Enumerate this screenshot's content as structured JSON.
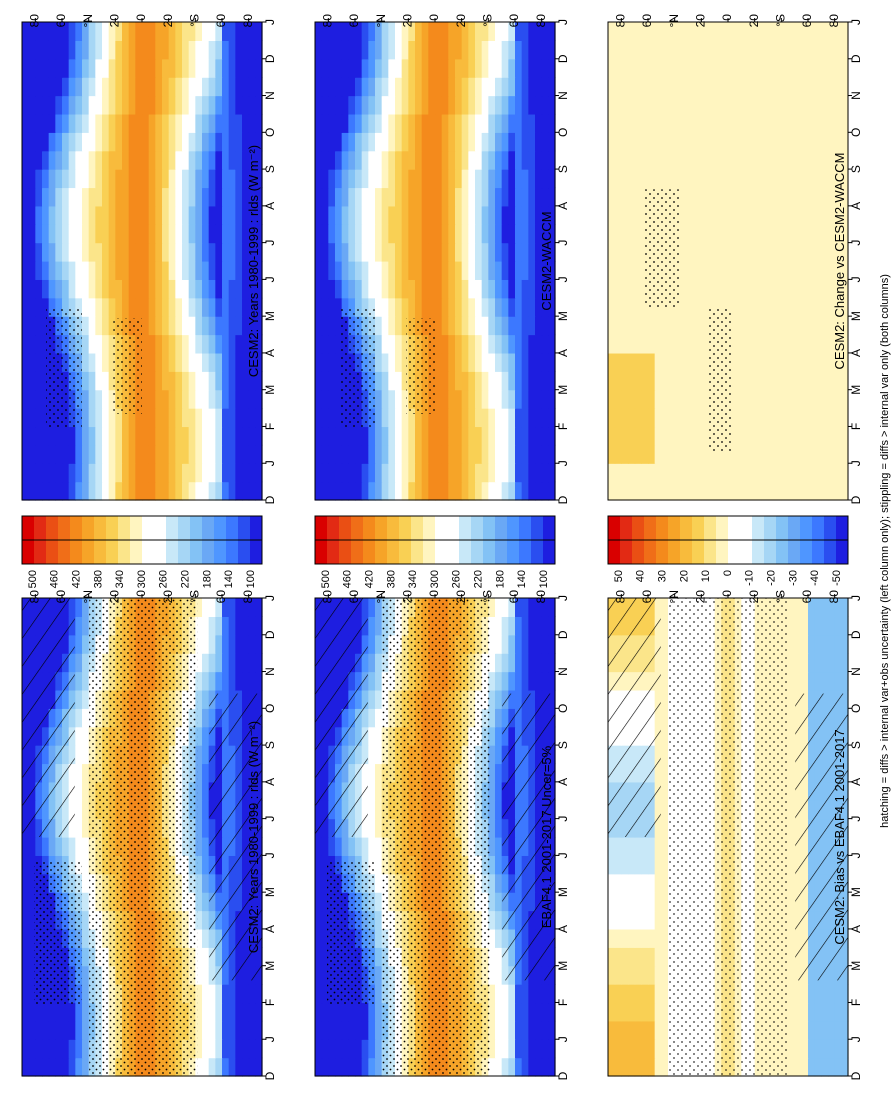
{
  "footnote": "hatching = diffs > internal var+obs uncertainty (left column only); stippling = diffs > internal var only (both columns)",
  "colors": {
    "abs": [
      "#1e1ee0",
      "#2a4ef0",
      "#3c78ff",
      "#4f96ff",
      "#6aa8f5",
      "#83c2f5",
      "#a6d6f5",
      "#c8e8f8",
      "#ffffff",
      "#ffffff",
      "#fff5c0",
      "#fbe58a",
      "#f9d054",
      "#f8bb3c",
      "#f6a428",
      "#f48a1c",
      "#f06e18",
      "#ea4f14",
      "#e22a14",
      "#d90000"
    ],
    "diff": [
      "#1e1ee0",
      "#2a4ef0",
      "#3c78ff",
      "#4f96ff",
      "#6aa8f5",
      "#83c2f5",
      "#a6d6f5",
      "#c8e8f8",
      "#ffffff",
      "#ffffff",
      "#fff5c0",
      "#fbe58a",
      "#f9d054",
      "#f8bb3c",
      "#f6a428",
      "#f48a1c",
      "#f06e18",
      "#ea4f14",
      "#e22a14",
      "#d90000"
    ]
  },
  "axes": {
    "months": [
      "J",
      "F",
      "M",
      "A",
      "M",
      "J",
      "J",
      "A",
      "S",
      "O",
      "N",
      "D",
      "J"
    ],
    "first_month": "D",
    "lat_labels": [
      "80",
      "60",
      "°N",
      "20",
      "0",
      "20",
      "°S",
      "60",
      "80"
    ]
  },
  "chart_data": [
    {
      "id": "p1",
      "type": "heatmap",
      "title": "CESM2: Years 1980-1999 : rlds (W m⁻²)",
      "colorbar": "abs",
      "field": "abs",
      "hatch": true,
      "stipple": "dense",
      "colorbar_ticks": [
        "500",
        "460",
        "420",
        "380",
        "340",
        "300",
        "260",
        "220",
        "180",
        "140",
        "100"
      ],
      "zlim": [
        80,
        520
      ]
    },
    {
      "id": "p2",
      "type": "heatmap",
      "title": "CESM2: Years 1980-1999 : rlds (W m⁻²)",
      "colorbar": "abs",
      "field": "abs",
      "hatch": false,
      "stipple": "sparse",
      "colorbar_ticks": [
        "500",
        "460",
        "420",
        "380",
        "340",
        "300",
        "260",
        "220",
        "180",
        "140",
        "100"
      ],
      "zlim": [
        80,
        520
      ]
    },
    {
      "id": "p3",
      "type": "heatmap",
      "title": "EBAF4.1 2001-2017 Uncer=5%",
      "colorbar": "abs",
      "field": "abs",
      "hatch": true,
      "stipple": "dense",
      "colorbar_ticks": [
        "500",
        "460",
        "420",
        "380",
        "340",
        "300",
        "260",
        "220",
        "180",
        "140",
        "100"
      ],
      "zlim": [
        80,
        520
      ]
    },
    {
      "id": "p4",
      "type": "heatmap",
      "title": "CESM2-WACCM",
      "colorbar": "abs",
      "field": "abs",
      "hatch": false,
      "stipple": "sparse",
      "colorbar_ticks": [
        "500",
        "460",
        "420",
        "380",
        "340",
        "300",
        "260",
        "220",
        "180",
        "140",
        "100"
      ],
      "zlim": [
        80,
        520
      ]
    },
    {
      "id": "p5",
      "type": "heatmap",
      "title": "CESM2: Bias vs EBAF4.1 2001-2017",
      "colorbar": "diff",
      "field": "bias",
      "hatch": true,
      "stipple": "medium",
      "colorbar_ticks": [
        "50",
        "40",
        "30",
        "20",
        "10",
        "0",
        "-10",
        "-20",
        "-30",
        "-40",
        "-50"
      ],
      "zlim": [
        -55,
        55
      ]
    },
    {
      "id": "p6",
      "type": "heatmap",
      "title": "CESM2: Change vs CESM2-WACCM",
      "colorbar": "diff",
      "field": "change",
      "hatch": false,
      "stipple": "patch",
      "colorbar_ticks": [
        "50",
        "40",
        "30",
        "20",
        "10",
        "0",
        "-10",
        "-20",
        "-30",
        "-40",
        "-50"
      ],
      "zlim": [
        -55,
        55
      ]
    }
  ]
}
